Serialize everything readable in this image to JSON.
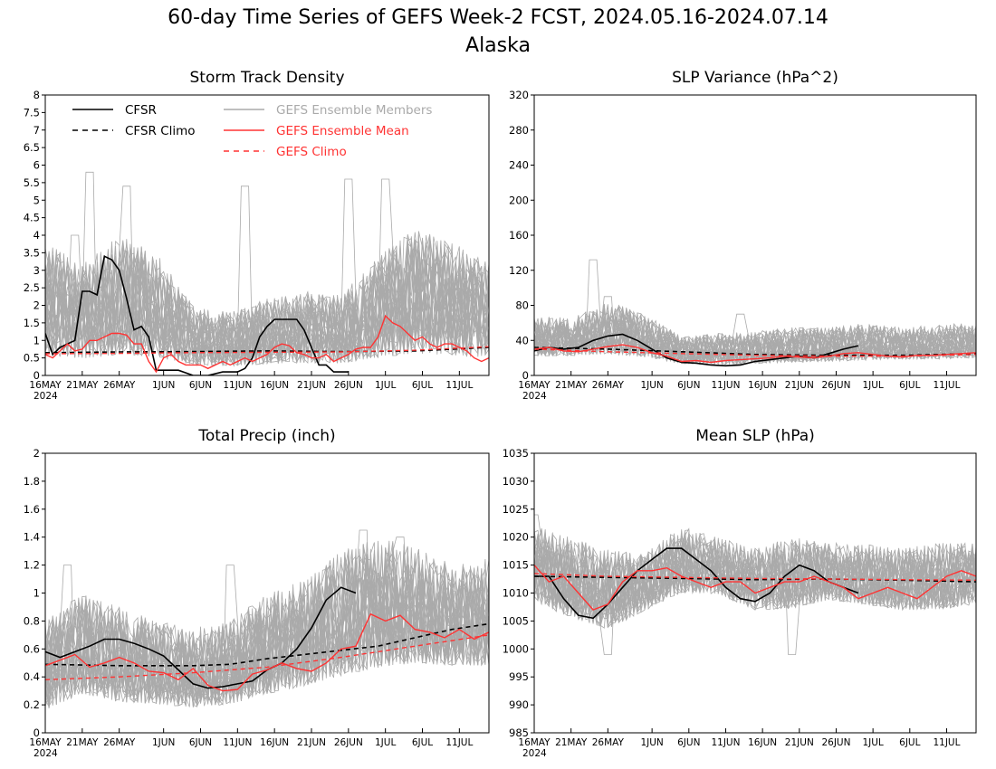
{
  "title": "60-day Time Series of GEFS Week-2 FCST, 2024.05.16-2024.07.14",
  "subtitle": "Alaska",
  "colors": {
    "cfsr": "#000000",
    "members": "#aaaaaa",
    "mean": "#ff3333",
    "gefs_climo": "#ff3333"
  },
  "legend": [
    {
      "label": "CFSR",
      "color": "#000000",
      "style": "solid"
    },
    {
      "label": "CFSR Climo",
      "color": "#000000",
      "style": "dashed"
    },
    {
      "label": "GEFS Ensemble Members",
      "color": "#aaaaaa",
      "style": "solid"
    },
    {
      "label": "GEFS Ensemble Mean",
      "color": "#ff3333",
      "style": "solid"
    },
    {
      "label": "GEFS Climo",
      "color": "#ff3333",
      "style": "dashed"
    }
  ],
  "x_ticks": [
    "16MAY",
    "21MAY",
    "26MAY",
    "1JUN",
    "6JUN",
    "11JUN",
    "16JUN",
    "21JUN",
    "26JUN",
    "1JUL",
    "6JUL",
    "11JUL"
  ],
  "x_year": "2024",
  "chart_data": [
    {
      "type": "line",
      "title": "Storm Track Density",
      "ylim": [
        0,
        8
      ],
      "yticks": [
        "0",
        "0.5",
        "1",
        "1.5",
        "2",
        "2.5",
        "3",
        "3.5",
        "4",
        "4.5",
        "5",
        "5.5",
        "6",
        "6.5",
        "7",
        "7.5",
        "8"
      ],
      "x_days": [
        0,
        60
      ],
      "ensemble_members": {
        "count": 30,
        "band_low": [
          0,
          0,
          0,
          0,
          0,
          0,
          0,
          0,
          0,
          0,
          0,
          0,
          0
        ],
        "band_high": [
          3.8,
          3.2,
          4.0,
          3.5,
          2.0,
          1.8,
          2.2,
          2.4,
          2.3,
          3.4,
          4.2,
          3.8,
          3.2
        ],
        "peaks": [
          [
            6,
            5.8
          ],
          [
            11,
            5.4
          ],
          [
            27,
            5.4
          ],
          [
            41,
            5.6
          ],
          [
            46,
            5.6
          ],
          [
            4,
            4.0
          ]
        ]
      },
      "series": [
        {
          "name": "CFSR",
          "x": [
            0,
            1,
            2,
            4,
            5,
            6,
            7,
            8,
            9,
            10,
            11,
            12,
            13,
            14,
            15,
            16,
            17,
            18,
            20,
            22,
            24,
            26,
            27,
            28,
            29,
            30,
            31,
            32,
            33,
            34,
            35,
            36,
            37,
            38,
            39,
            40,
            41
          ],
          "y": [
            1.2,
            0.6,
            0.8,
            1.0,
            2.4,
            2.4,
            2.3,
            3.4,
            3.3,
            3.0,
            2.2,
            1.3,
            1.4,
            1.1,
            0.15,
            0.15,
            0.15,
            0.15,
            0.0,
            0.0,
            0.1,
            0.1,
            0.2,
            0.5,
            1.1,
            1.4,
            1.6,
            1.6,
            1.6,
            1.6,
            1.3,
            0.8,
            0.3,
            0.3,
            0.1,
            0.1,
            0.1
          ]
        },
        {
          "name": "CFSR Climo",
          "x": [
            0,
            10,
            20,
            30,
            40,
            50,
            60
          ],
          "y": [
            0.65,
            0.67,
            0.68,
            0.7,
            0.68,
            0.7,
            0.8
          ]
        },
        {
          "name": "GEFS Ensemble Mean",
          "x": [
            0,
            1,
            2,
            3,
            4,
            5,
            6,
            7,
            8,
            9,
            10,
            11,
            12,
            13,
            14,
            15,
            16,
            17,
            18,
            19,
            20,
            21,
            22,
            23,
            24,
            25,
            26,
            27,
            28,
            29,
            30,
            31,
            32,
            33,
            34,
            35,
            36,
            37,
            38,
            39,
            40,
            41,
            42,
            43,
            44,
            45,
            46,
            47,
            48,
            49,
            50,
            51,
            52,
            53,
            54,
            55,
            56,
            57,
            58,
            59,
            60
          ],
          "y": [
            0.6,
            0.5,
            0.7,
            0.9,
            0.7,
            0.75,
            1.0,
            1.0,
            1.1,
            1.2,
            1.2,
            1.15,
            0.9,
            0.9,
            0.4,
            0.1,
            0.5,
            0.6,
            0.4,
            0.3,
            0.3,
            0.3,
            0.2,
            0.3,
            0.4,
            0.3,
            0.4,
            0.5,
            0.4,
            0.5,
            0.6,
            0.8,
            0.9,
            0.85,
            0.65,
            0.6,
            0.5,
            0.5,
            0.6,
            0.4,
            0.5,
            0.6,
            0.75,
            0.8,
            0.8,
            1.1,
            1.7,
            1.5,
            1.4,
            1.2,
            1.0,
            1.1,
            0.9,
            0.8,
            0.9,
            0.9,
            0.8,
            0.7,
            0.5,
            0.4,
            0.5
          ]
        },
        {
          "name": "GEFS Climo",
          "x": [
            0,
            10,
            20,
            30,
            40,
            50,
            60
          ],
          "y": [
            0.62,
            0.63,
            0.65,
            0.66,
            0.67,
            0.72,
            0.82
          ]
        }
      ]
    },
    {
      "type": "line",
      "title": "SLP Variance (hPa^2)",
      "ylim": [
        0,
        320
      ],
      "yticks": [
        "0",
        "40",
        "80",
        "120",
        "160",
        "200",
        "240",
        "280",
        "320"
      ],
      "x_days": [
        0,
        60
      ],
      "ensemble_members": {
        "count": 30,
        "band_low": [
          14,
          15,
          14,
          12,
          8,
          6,
          7,
          8,
          9,
          10,
          12,
          12,
          13
        ],
        "band_high": [
          70,
          65,
          85,
          70,
          45,
          48,
          50,
          55,
          55,
          60,
          55,
          58,
          60
        ],
        "peaks": [
          [
            8,
            132
          ],
          [
            10,
            90
          ],
          [
            28,
            70
          ]
        ]
      },
      "series": [
        {
          "name": "CFSR",
          "x": [
            0,
            2,
            4,
            6,
            8,
            10,
            12,
            14,
            16,
            18,
            20,
            22,
            24,
            26,
            28,
            30,
            32,
            34,
            36,
            38,
            40,
            42,
            44
          ],
          "y": [
            28,
            32,
            30,
            32,
            40,
            45,
            47,
            40,
            30,
            20,
            15,
            14,
            12,
            11,
            12,
            16,
            18,
            20,
            22,
            20,
            25,
            30,
            34
          ]
        },
        {
          "name": "CFSR Climo",
          "x": [
            0,
            10,
            20,
            30,
            40,
            50,
            60
          ],
          "y": [
            32,
            30,
            27,
            24,
            23,
            23,
            25
          ]
        },
        {
          "name": "GEFS Ensemble Mean",
          "x": [
            0,
            2,
            4,
            6,
            8,
            10,
            12,
            14,
            16,
            18,
            20,
            22,
            24,
            26,
            28,
            30,
            32,
            34,
            36,
            38,
            40,
            42,
            44,
            46,
            48,
            50,
            52,
            54,
            56,
            58,
            60
          ],
          "y": [
            30,
            32,
            28,
            27,
            30,
            33,
            35,
            32,
            26,
            22,
            16,
            17,
            15,
            17,
            18,
            19,
            20,
            22,
            21,
            20,
            22,
            25,
            26,
            24,
            22,
            21,
            23,
            23,
            24,
            25,
            26
          ]
        },
        {
          "name": "GEFS Climo",
          "x": [
            0,
            10,
            20,
            30,
            40,
            50,
            60
          ],
          "y": [
            30,
            27,
            25,
            23,
            22,
            22,
            24
          ]
        }
      ]
    },
    {
      "type": "line",
      "title": "Total Precip (inch)",
      "ylim": [
        0,
        2
      ],
      "yticks": [
        "0",
        "0.2",
        "0.4",
        "0.6",
        "0.8",
        "1",
        "1.2",
        "1.4",
        "1.6",
        "1.8",
        "2"
      ],
      "x_days": [
        0,
        60
      ],
      "ensemble_members": {
        "count": 30,
        "band_low": [
          0.05,
          0.15,
          0.1,
          0.1,
          0.08,
          0.1,
          0.15,
          0.2,
          0.25,
          0.3,
          0.35,
          0.35,
          0.35
        ],
        "band_high": [
          0.8,
          1.0,
          0.9,
          0.8,
          0.75,
          0.8,
          1.0,
          1.1,
          1.3,
          1.4,
          1.35,
          1.2,
          1.25
        ],
        "peaks": [
          [
            3,
            1.2
          ],
          [
            25,
            1.2
          ],
          [
            43,
            1.45
          ],
          [
            48,
            1.4
          ]
        ]
      },
      "series": [
        {
          "name": "CFSR",
          "x": [
            0,
            2,
            4,
            6,
            8,
            10,
            12,
            14,
            16,
            18,
            20,
            22,
            24,
            26,
            28,
            30,
            32,
            34,
            36,
            38,
            40,
            42
          ],
          "y": [
            0.58,
            0.54,
            0.58,
            0.62,
            0.67,
            0.67,
            0.64,
            0.6,
            0.55,
            0.45,
            0.35,
            0.32,
            0.33,
            0.35,
            0.37,
            0.45,
            0.5,
            0.6,
            0.75,
            0.95,
            1.04,
            1.0
          ]
        },
        {
          "name": "CFSR Climo",
          "x": [
            0,
            10,
            20,
            25,
            30,
            35,
            40,
            45,
            50,
            55,
            60
          ],
          "y": [
            0.49,
            0.48,
            0.48,
            0.49,
            0.53,
            0.56,
            0.59,
            0.62,
            0.68,
            0.74,
            0.78
          ]
        },
        {
          "name": "GEFS Ensemble Mean",
          "x": [
            0,
            2,
            4,
            6,
            8,
            10,
            12,
            14,
            16,
            18,
            20,
            22,
            24,
            26,
            28,
            30,
            32,
            34,
            36,
            38,
            40,
            42,
            44,
            46,
            48,
            50,
            52,
            54,
            56,
            58,
            60
          ],
          "y": [
            0.48,
            0.52,
            0.56,
            0.47,
            0.5,
            0.54,
            0.5,
            0.44,
            0.43,
            0.38,
            0.46,
            0.34,
            0.3,
            0.31,
            0.42,
            0.45,
            0.5,
            0.46,
            0.44,
            0.5,
            0.6,
            0.62,
            0.85,
            0.8,
            0.84,
            0.74,
            0.72,
            0.68,
            0.74,
            0.67,
            0.72
          ]
        },
        {
          "name": "GEFS Climo",
          "x": [
            0,
            10,
            20,
            30,
            40,
            50,
            60
          ],
          "y": [
            0.38,
            0.4,
            0.43,
            0.47,
            0.54,
            0.62,
            0.7
          ]
        }
      ]
    },
    {
      "type": "line",
      "title": "Mean SLP (hPa)",
      "ylim": [
        985,
        1035
      ],
      "yticks": [
        "985",
        "990",
        "995",
        "1000",
        "1005",
        "1010",
        "1015",
        "1020",
        "1025",
        "1030",
        "1035"
      ],
      "x_days": [
        0,
        60
      ],
      "ensemble_members": {
        "count": 30,
        "band_low": [
          1006,
          1003,
          1001,
          1005,
          1008,
          1008,
          1005,
          1005,
          1007,
          1006,
          1005,
          1005,
          1006
        ],
        "band_high": [
          1022,
          1020,
          1018,
          1017,
          1022,
          1020,
          1018,
          1020,
          1019,
          1019,
          1018,
          1019,
          1019
        ],
        "peaks": [
          [
            0,
            1024
          ],
          [
            35,
            999
          ],
          [
            10,
            999
          ]
        ]
      },
      "series": [
        {
          "name": "CFSR",
          "x": [
            0,
            2,
            4,
            6,
            8,
            10,
            12,
            14,
            16,
            18,
            20,
            22,
            24,
            26,
            28,
            30,
            32,
            34,
            36,
            38,
            40,
            42,
            44
          ],
          "y": [
            1013,
            1013,
            1009,
            1006,
            1005.5,
            1008,
            1011,
            1014,
            1016,
            1018,
            1018,
            1016,
            1014,
            1011,
            1009,
            1008.5,
            1010,
            1013,
            1015,
            1014,
            1012,
            1011,
            1010
          ]
        },
        {
          "name": "CFSR Climo",
          "x": [
            0,
            10,
            20,
            30,
            40,
            50,
            60
          ],
          "y": [
            1013,
            1012.8,
            1012.6,
            1012.4,
            1012.5,
            1012.3,
            1012
          ]
        },
        {
          "name": "GEFS Ensemble Mean",
          "x": [
            0,
            2,
            4,
            6,
            8,
            10,
            12,
            14,
            16,
            18,
            20,
            22,
            24,
            26,
            28,
            30,
            32,
            34,
            36,
            38,
            40,
            42,
            44,
            46,
            48,
            50,
            52,
            54,
            56,
            58,
            60
          ],
          "y": [
            1015,
            1012,
            1013,
            1010,
            1007,
            1008,
            1012,
            1014,
            1014,
            1014.5,
            1013,
            1012,
            1011,
            1012,
            1012,
            1010,
            1011,
            1012,
            1012,
            1013,
            1012,
            1011,
            1009,
            1010,
            1011,
            1010,
            1009,
            1011,
            1013,
            1014,
            1013
          ]
        },
        {
          "name": "GEFS Climo",
          "x": [
            0,
            10,
            20,
            30,
            40,
            50,
            60
          ],
          "y": [
            1013.5,
            1013,
            1012.8,
            1012.6,
            1012.5,
            1012.4,
            1012.3
          ]
        }
      ]
    }
  ]
}
